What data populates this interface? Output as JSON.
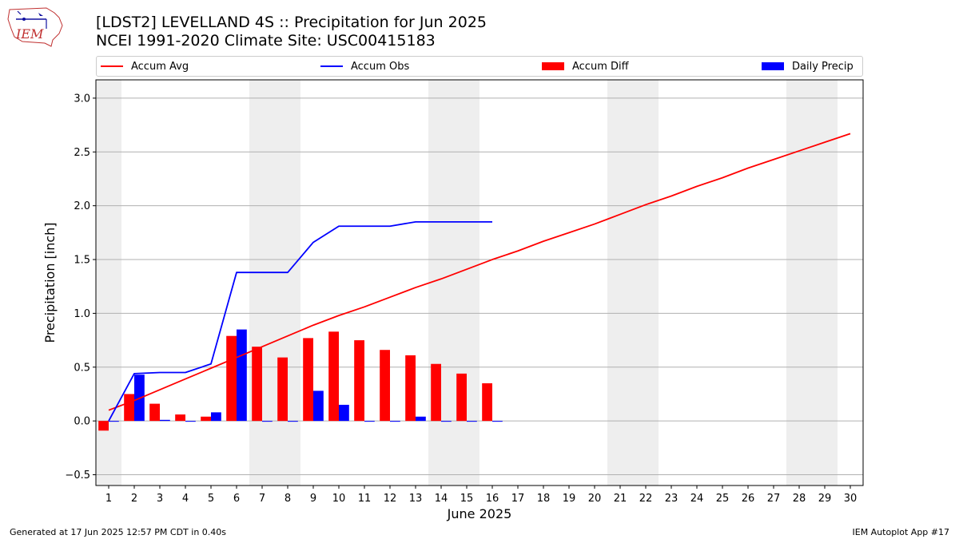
{
  "header": {
    "title_line1": "[LDST2] LEVELLAND 4S :: Precipitation for Jun 2025",
    "title_line2": "NCEI 1991-2020 Climate Site: USC00415183",
    "logo_text": "IEM"
  },
  "footer": {
    "generated": "Generated at 17 Jun 2025 12:57 PM CDT in 0.40s",
    "app": "IEM Autoplot App #17"
  },
  "colors": {
    "accum_avg": "#ff0000",
    "accum_obs": "#0000ff",
    "accum_diff": "#ff0000",
    "daily_precip": "#0000ff",
    "weekend_band": "#eeeeee",
    "grid": "#b0b0b0"
  },
  "chart_data": {
    "type": "bar",
    "xlabel": "June 2025",
    "ylabel": "Precipitation [inch]",
    "xlim": [
      0.5,
      30.5
    ],
    "ylim": [
      -0.6,
      3.17
    ],
    "y_ticks": [
      -0.5,
      0.0,
      0.5,
      1.0,
      1.5,
      2.0,
      2.5,
      3.0
    ],
    "y_tick_labels": [
      "−0.5",
      "0.0",
      "0.5",
      "1.0",
      "1.5",
      "2.0",
      "2.5",
      "3.0"
    ],
    "x": [
      1,
      2,
      3,
      4,
      5,
      6,
      7,
      8,
      9,
      10,
      11,
      12,
      13,
      14,
      15,
      16,
      17,
      18,
      19,
      20,
      21,
      22,
      23,
      24,
      25,
      26,
      27,
      28,
      29,
      30
    ],
    "x_tick_labels": [
      "1",
      "2",
      "3",
      "4",
      "5",
      "6",
      "7",
      "8",
      "9",
      "10",
      "11",
      "12",
      "13",
      "14",
      "15",
      "16",
      "17",
      "18",
      "19",
      "20",
      "21",
      "22",
      "23",
      "24",
      "25",
      "26",
      "27",
      "28",
      "29",
      "30"
    ],
    "grid": "horizontal",
    "legend_placement": "top",
    "weekend_bands": [
      [
        0.5,
        1.5
      ],
      [
        6.5,
        8.5
      ],
      [
        13.5,
        15.5
      ],
      [
        20.5,
        22.5
      ],
      [
        27.5,
        29.5
      ]
    ],
    "series": [
      {
        "name": "Accum Avg",
        "kind": "line",
        "x": [
          1,
          2,
          3,
          4,
          5,
          6,
          7,
          8,
          9,
          10,
          11,
          12,
          13,
          14,
          15,
          16,
          17,
          18,
          19,
          20,
          21,
          22,
          23,
          24,
          25,
          26,
          27,
          28,
          29,
          30
        ],
        "values": [
          0.1,
          0.19,
          0.29,
          0.39,
          0.49,
          0.59,
          0.69,
          0.79,
          0.89,
          0.98,
          1.06,
          1.15,
          1.24,
          1.32,
          1.41,
          1.5,
          1.58,
          1.67,
          1.75,
          1.83,
          1.92,
          2.01,
          2.09,
          2.18,
          2.26,
          2.35,
          2.43,
          2.51,
          2.59,
          2.67
        ]
      },
      {
        "name": "Accum Obs",
        "kind": "line",
        "x": [
          1,
          2,
          3,
          4,
          5,
          6,
          7,
          8,
          9,
          10,
          11,
          12,
          13,
          14,
          15,
          16
        ],
        "values": [
          0.0,
          0.44,
          0.45,
          0.45,
          0.53,
          1.38,
          1.38,
          1.38,
          1.66,
          1.81,
          1.81,
          1.81,
          1.85,
          1.85,
          1.85,
          1.85
        ]
      },
      {
        "name": "Accum Diff",
        "kind": "bar",
        "x": [
          1,
          2,
          3,
          4,
          5,
          6,
          7,
          8,
          9,
          10,
          11,
          12,
          13,
          14,
          15,
          16
        ],
        "values": [
          -0.09,
          0.25,
          0.16,
          0.06,
          0.04,
          0.79,
          0.69,
          0.59,
          0.77,
          0.83,
          0.75,
          0.66,
          0.61,
          0.53,
          0.44,
          0.35
        ]
      },
      {
        "name": "Daily Precip",
        "kind": "bar",
        "x": [
          1,
          2,
          3,
          4,
          5,
          6,
          7,
          8,
          9,
          10,
          11,
          12,
          13,
          14,
          15,
          16
        ],
        "values": [
          0.0,
          0.43,
          0.01,
          0.0,
          0.08,
          0.85,
          0.0,
          0.0,
          0.28,
          0.15,
          0.0,
          0.0,
          0.04,
          0.0,
          0.0,
          0.0
        ]
      }
    ]
  }
}
